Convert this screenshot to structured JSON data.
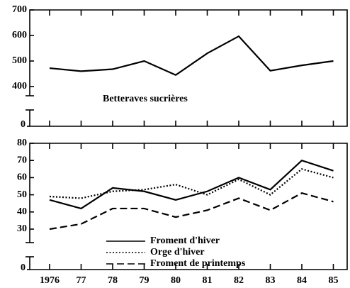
{
  "chart_data": [
    {
      "type": "line",
      "annotation": "Betteraves sucrières",
      "ylim": [
        400,
        700
      ],
      "yticks": [
        400,
        500,
        600,
        700
      ],
      "axis_break_ticks": [
        0
      ],
      "series": [
        {
          "name": "Betteraves sucrières",
          "color": "#000000",
          "style": "solid",
          "values": [
            472,
            460,
            468,
            500,
            445,
            530,
            597,
            462,
            483,
            500
          ]
        }
      ]
    },
    {
      "type": "line",
      "categories": [
        "1976",
        "77",
        "78",
        "79",
        "80",
        "81",
        "82",
        "83",
        "84",
        "85"
      ],
      "ylim": [
        30,
        80
      ],
      "yticks": [
        30,
        40,
        50,
        60,
        70,
        80
      ],
      "axis_break_ticks": [
        0
      ],
      "legend": "bottom-center",
      "series": [
        {
          "name": "Froment d'hiver",
          "color": "#000000",
          "style": "solid",
          "values": [
            47,
            42,
            54,
            52,
            47,
            52,
            60,
            53,
            70,
            64
          ]
        },
        {
          "name": "Orge d'hiver",
          "color": "#000000",
          "style": "dotted",
          "values": [
            49,
            48,
            52,
            53,
            56,
            50,
            59,
            50,
            65,
            60
          ]
        },
        {
          "name": "Froment de printemps",
          "color": "#000000",
          "style": "dashed",
          "values": [
            30,
            33,
            42,
            42,
            37,
            41,
            48,
            41,
            51,
            46
          ]
        }
      ]
    }
  ]
}
